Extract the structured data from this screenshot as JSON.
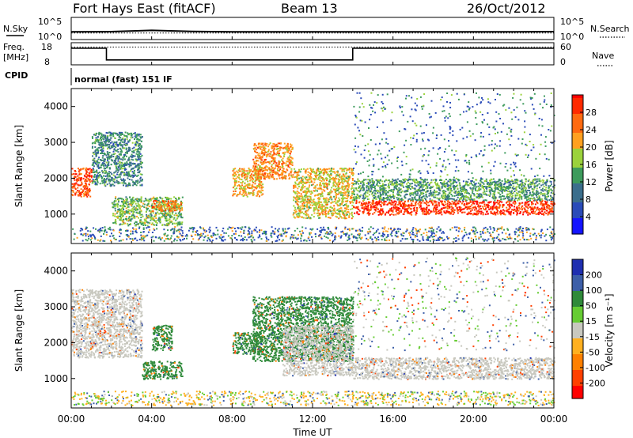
{
  "header": {
    "station": "Fort Hays East (fitACF)",
    "beam": "Beam 13",
    "date": "26/Oct/2012"
  },
  "sky_panel": {
    "left_label": "N.Sky",
    "left_ticks": [
      "10^5",
      "10^0"
    ],
    "right_label": "N.Search",
    "right_ticks": [
      "10^5",
      "10^0"
    ]
  },
  "freq_panel": {
    "left_label_1": "Freq.",
    "left_label_2": "[MHz]",
    "left_ticks": [
      "18",
      "8"
    ],
    "right_label": "Nave",
    "right_ticks": [
      "60",
      "0"
    ]
  },
  "cpid_panel": {
    "label": "CPID",
    "mode": "normal (fast) 151 IF"
  },
  "power_panel": {
    "ylabel": "Slant Range [km]",
    "cbar_label": "Power [dB]"
  },
  "velocity_panel": {
    "ylabel": "Slant Range [km]",
    "cbar_label": "Velocity [m s⁻¹]"
  },
  "xaxis": {
    "label": "Time UT"
  },
  "chart_data": [
    {
      "type": "line",
      "title": "N.Sky / N.Search",
      "x": [
        0,
        2,
        4,
        6,
        8,
        10,
        12,
        14,
        16,
        18,
        20,
        22,
        24
      ],
      "series": [
        {
          "name": "N.Sky",
          "values": [
            55,
            60,
            120,
            65,
            55,
            55,
            55,
            55,
            55,
            55,
            55,
            55,
            60
          ]
        },
        {
          "name": "N.Search",
          "values": [
            30,
            30,
            30,
            30,
            30,
            30,
            30,
            30,
            30,
            30,
            30,
            30,
            30
          ]
        }
      ],
      "ylim": [
        1,
        100000
      ],
      "yscale": "log"
    },
    {
      "type": "line",
      "title": "Freq / Nave",
      "x": [
        0,
        1.75,
        1.75,
        14.0,
        14.0,
        24
      ],
      "series": [
        {
          "name": "Freq. [MHz]",
          "values": [
            15.5,
            15.5,
            10.2,
            10.2,
            15.5,
            15.5
          ]
        },
        {
          "name": "Nave",
          "values": [
            16,
            16,
            16,
            16,
            16,
            16
          ]
        }
      ],
      "ylim": [
        8,
        18
      ]
    },
    {
      "type": "heatmap",
      "title": "Power [dB]",
      "xlabel": "Time UT",
      "ylabel": "Slant Range [km]",
      "xlim": [
        0,
        24
      ],
      "ylim": [
        180,
        4500
      ],
      "xticks": [
        "00:00",
        "04:00",
        "08:00",
        "12:00",
        "16:00",
        "20:00",
        "00:00"
      ],
      "yticks": [
        1000,
        2000,
        3000,
        4000
      ],
      "colorbar": {
        "min": 0,
        "max": 32,
        "ticks": [
          4,
          8,
          12,
          16,
          20,
          24,
          28
        ]
      },
      "features": [
        {
          "t_start": 0.0,
          "t_end": 1.0,
          "range_start": 1500,
          "range_end": 2300,
          "level": 28
        },
        {
          "t_start": 1.0,
          "t_end": 3.5,
          "range_start": 1800,
          "range_end": 3300,
          "level": 12
        },
        {
          "t_start": 2.0,
          "t_end": 5.5,
          "range_start": 700,
          "range_end": 1500,
          "level": 16
        },
        {
          "t_start": 4.0,
          "t_end": 5.5,
          "range_start": 1100,
          "range_end": 1400,
          "level": 24
        },
        {
          "t_start": 8.0,
          "t_end": 9.5,
          "range_start": 1500,
          "range_end": 2300,
          "level": 22
        },
        {
          "t_start": 9.0,
          "t_end": 11.0,
          "range_start": 2000,
          "range_end": 3000,
          "level": 24
        },
        {
          "t_start": 11.0,
          "t_end": 14.0,
          "range_start": 900,
          "range_end": 2300,
          "level": 20
        },
        {
          "t_start": 14.0,
          "t_end": 24.0,
          "range_start": 1000,
          "range_end": 1400,
          "level": 30
        },
        {
          "t_start": 14.0,
          "t_end": 24.0,
          "range_start": 1400,
          "range_end": 2000,
          "level": 14
        }
      ]
    },
    {
      "type": "heatmap",
      "title": "Velocity [m s⁻¹]",
      "xlabel": "Time UT",
      "ylabel": "Slant Range [km]",
      "xlim": [
        0,
        24
      ],
      "ylim": [
        180,
        4500
      ],
      "xticks": [
        "00:00",
        "04:00",
        "08:00",
        "12:00",
        "16:00",
        "20:00",
        "00:00"
      ],
      "yticks": [
        1000,
        2000,
        3000,
        4000
      ],
      "colorbar": {
        "min": -250,
        "max": 250,
        "ticks": [
          200,
          100,
          50,
          15,
          -15,
          -50,
          -100,
          -200
        ]
      },
      "features": [
        {
          "t_start": 0.0,
          "t_end": 3.5,
          "range_start": 1600,
          "range_end": 3500,
          "velocity": 0
        },
        {
          "t_start": 3.5,
          "t_end": 5.5,
          "range_start": 1000,
          "range_end": 1500,
          "velocity": 60
        },
        {
          "t_start": 4.0,
          "t_end": 5.0,
          "range_start": 1800,
          "range_end": 2500,
          "velocity": 60
        },
        {
          "t_start": 8.0,
          "t_end": 9.5,
          "range_start": 1700,
          "range_end": 2300,
          "velocity": 60
        },
        {
          "t_start": 9.0,
          "t_end": 14.0,
          "range_start": 1500,
          "range_end": 3300,
          "velocity": 60
        },
        {
          "t_start": 10.5,
          "t_end": 14.0,
          "range_start": 1100,
          "range_end": 2500,
          "velocity": 0
        },
        {
          "t_start": 14.0,
          "t_end": 24.0,
          "range_start": 1000,
          "range_end": 1600,
          "velocity": 0
        }
      ]
    }
  ]
}
